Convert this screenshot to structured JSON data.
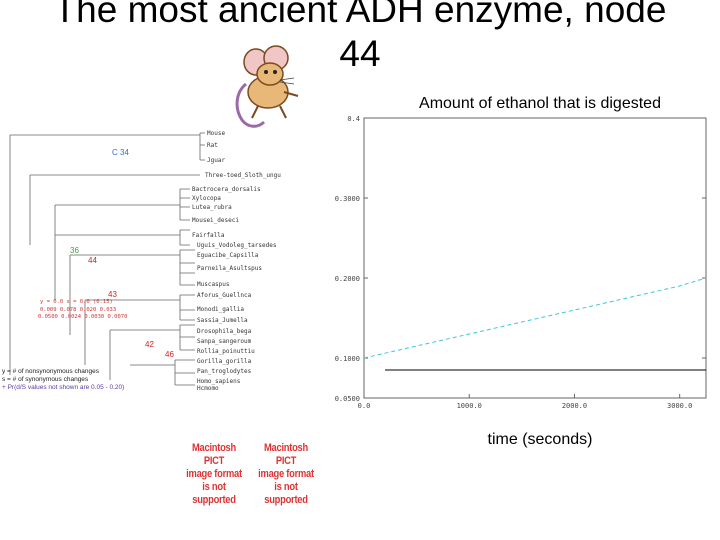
{
  "slide": {
    "title_line1": "The most ancient ADH enzyme, node",
    "title_line2": "44"
  },
  "chart": {
    "caption": "Amount of ethanol that is digested",
    "xcaption": "time (seconds)"
  },
  "chart_data": {
    "type": "line",
    "title": "Amount of ethanol that is digested",
    "xlabel": "time (seconds)",
    "ylabel": "",
    "xlim": [
      0,
      3250
    ],
    "ylim": [
      0.05,
      0.4
    ],
    "x_ticks": [
      "0.0",
      "1000.0",
      "2000.0",
      "3000.0"
    ],
    "y_ticks": [
      "0.0500",
      "0.1000",
      "0.2000",
      "0.3000",
      "0.4"
    ],
    "grid": false,
    "series": [
      {
        "style": "dashed",
        "color": "#3cc8dc",
        "x": [
          0,
          500,
          1000,
          1500,
          2000,
          2500,
          3000,
          3250
        ],
        "y": [
          0.1,
          0.115,
          0.13,
          0.145,
          0.16,
          0.175,
          0.19,
          0.2
        ]
      },
      {
        "style": "solid",
        "color": "#000000",
        "x": [
          200,
          700,
          1300,
          2000,
          2600,
          3250
        ],
        "y": [
          0.085,
          0.085,
          0.085,
          0.085,
          0.085,
          0.085
        ]
      }
    ]
  },
  "tree": {
    "leaves": [
      "Mouse",
      "Rat",
      "Jguar",
      "Three-toed_Sloth_ungu",
      "Bactrocera_dorsalis",
      "Xylocopa",
      "Lutea_rubra",
      "Mousei_deseci",
      "Fairfalla",
      "Uguis_Vodoleg_tarsedes",
      "Eguacibe_Capsilla",
      "Parneila_Asultspus",
      "Muscaspus",
      "Aforus_Guellnca",
      "Monodi_gallia",
      "Sassia_Jumella",
      "Drosophila_bega",
      "Sanpa_sangeroum",
      "Rollia_poinuttiu",
      "Gorilla_gorilla",
      "Pan_troglodytes",
      "Homo_sapiens",
      "Hcmomo"
    ],
    "node_labels": [
      "44",
      "43",
      "42",
      "C 34",
      "36",
      "46"
    ],
    "legend": [
      "y = # of nonsynonymous changes",
      "s = # of synonymous changes",
      "+ Pr(d/S values not shown are 0.05 - 0.20)"
    ],
    "red_annotations": [
      "y = 0.0 s = 0.0 (0.15)",
      "0.009 0.078 0.020 0.033",
      "0.0500 0.0024 0.0030 0.0070"
    ]
  },
  "placeholders": [
    {
      "line1": "Macintosh PICT",
      "line2": "image format",
      "line3": "is not supported"
    },
    {
      "line1": "Macintosh PICT",
      "line2": "image format",
      "line3": "is not supported"
    }
  ],
  "colors": {
    "accent_red": "#d33333",
    "series_cyan": "#3cc8dc"
  }
}
